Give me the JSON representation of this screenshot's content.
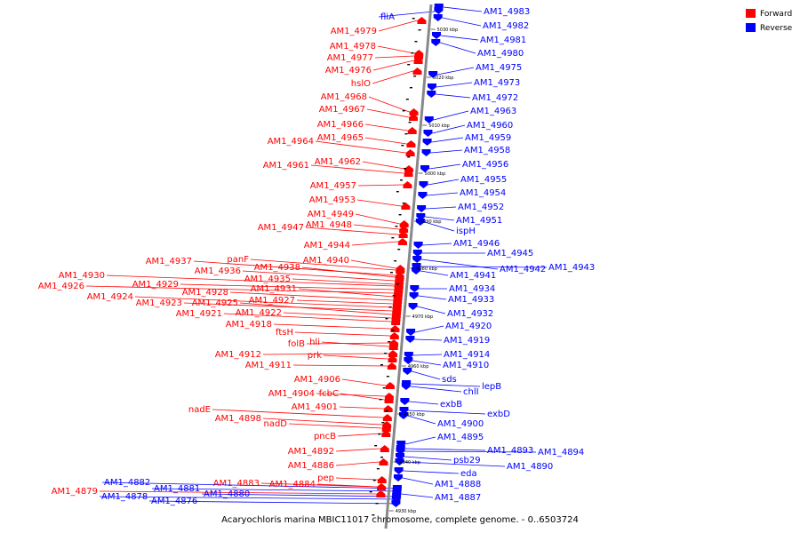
{
  "caption": "Acaryochloris marina MBIC11017 chromosome, complete genome. - 0..6503724",
  "legend": [
    {
      "label": "Forward",
      "color": "#ff0000"
    },
    {
      "label": "Reverse",
      "color": "#0000ff"
    }
  ],
  "colors": {
    "forward": "#ff0000",
    "reverse": "#0000ff",
    "axis": "#888888"
  },
  "ticks": [
    "5030 kbp",
    "5020 kbp",
    "5010 kbp",
    "5000 kbp",
    "4990 kbp",
    "4980 kbp",
    "4970 kbp",
    "4960 kbp",
    "4950 kbp",
    "4940 kbp",
    "4930 kbp"
  ],
  "forward_genes": [
    "AM1_4979",
    "AM1_4978",
    "AM1_4977",
    "AM1_4976",
    "hslO",
    "AM1_4968",
    "AM1_4967",
    "AM1_4966",
    "AM1_4965",
    "AM1_4964",
    "AM1_4962",
    "AM1_4961",
    "AM1_4957",
    "AM1_4953",
    "AM1_4949",
    "AM1_4948",
    "AM1_4947",
    "AM1_4944",
    "panF",
    "AM1_4940",
    "AM1_4937",
    "AM1_4938",
    "AM1_4936",
    "AM1_4935",
    "AM1_4930",
    "AM1_4929",
    "AM1_4926",
    "AM1_4931",
    "AM1_4928",
    "AM1_4927",
    "AM1_4924",
    "AM1_4923",
    "AM1_4925",
    "AM1_4922",
    "AM1_4921",
    "AM1_4918",
    "ftsH",
    "folB",
    "hli",
    "AM1_4912",
    "prk",
    "AM1_4911",
    "AM1_4906",
    "AM1_4904",
    "fcbC",
    "AM1_4901",
    "nadE",
    "AM1_4898",
    "nadD",
    "pncB",
    "AM1_4892",
    "AM1_4886",
    "pep",
    "AM1_4883",
    "AM1_4884",
    "AM1_4879"
  ],
  "reverse_genes": [
    "fliA",
    "AM1_4983",
    "AM1_4982",
    "AM1_4981",
    "AM1_4980",
    "AM1_4975",
    "AM1_4973",
    "AM1_4972",
    "AM1_4963",
    "AM1_4960",
    "AM1_4959",
    "AM1_4958",
    "AM1_4956",
    "AM1_4955",
    "AM1_4954",
    "AM1_4952",
    "AM1_4951",
    "ispH",
    "AM1_4946",
    "AM1_4945",
    "AM1_4942",
    "AM1_4943",
    "AM1_4941",
    "AM1_4934",
    "AM1_4933",
    "AM1_4932",
    "AM1_4920",
    "AM1_4919",
    "AM1_4914",
    "AM1_4910",
    "sds",
    "lepB",
    "chlI",
    "exbB",
    "exbD",
    "AM1_4900",
    "AM1_4895",
    "AM1_4893",
    "AM1_4894",
    "psb29",
    "AM1_4890",
    "eda",
    "AM1_4888",
    "AM1_4887",
    "AM1_4882",
    "AM1_4881",
    "AM1_4880",
    "AM1_4878",
    "AM1_4876"
  ]
}
